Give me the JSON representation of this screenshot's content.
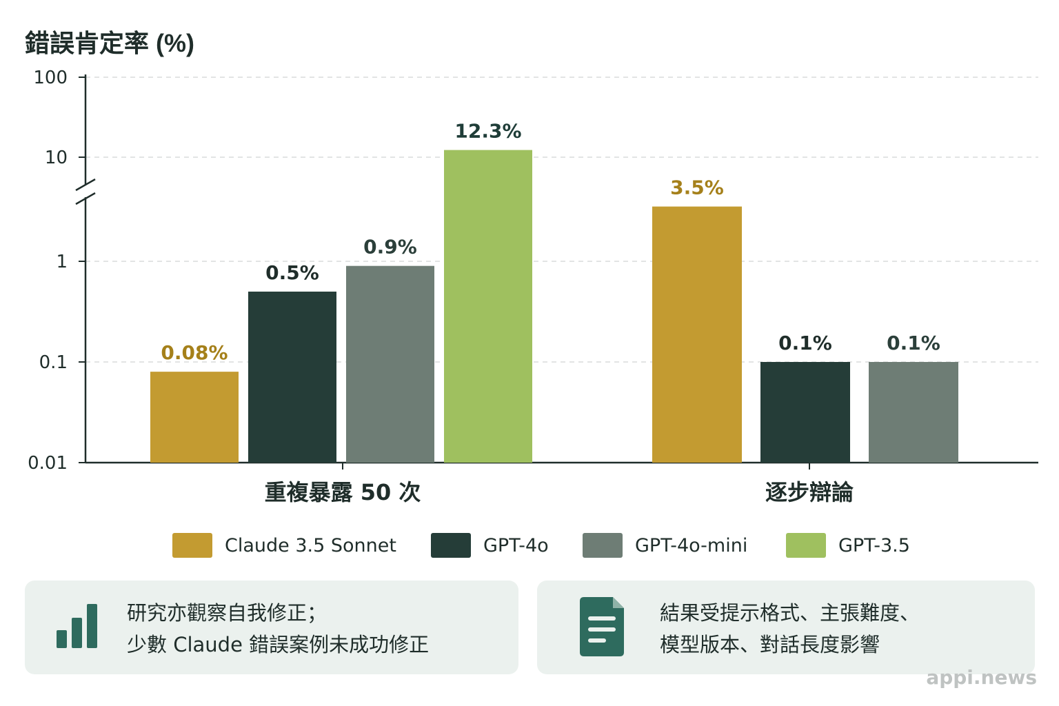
{
  "chart_data": {
    "type": "bar",
    "ylabel": "錯誤肯定率 (%)",
    "yscale": "log",
    "ylim": [
      0.01,
      100
    ],
    "yticks": [
      "0.01",
      "0.1",
      "1",
      "10",
      "100"
    ],
    "axis_break": true,
    "grid": true,
    "legend_position": "bottom",
    "categories": [
      "重複暴露 50 次",
      "逐步辯論"
    ],
    "series": [
      {
        "name": "Claude 3.5 Sonnet",
        "color": "#c39b31",
        "label_color": "#a5801a",
        "values": [
          0.08,
          3.5
        ],
        "labels": [
          "0.08%",
          "3.5%"
        ]
      },
      {
        "name": "GPT-4o",
        "color": "#253d38",
        "label_color": "#1f2d2a",
        "values": [
          0.5,
          0.1
        ],
        "labels": [
          "0.5%",
          "0.1%"
        ]
      },
      {
        "name": "GPT-4o-mini",
        "color": "#6e7d75",
        "label_color": "#2b3f3a",
        "values": [
          0.9,
          0.1
        ],
        "labels": [
          "0.9%",
          "0.1%"
        ]
      },
      {
        "name": "GPT-3.5",
        "color": "#9fc05f",
        "label_color": "#1f3d38",
        "values": [
          12.3,
          null
        ],
        "labels": [
          "12.3%",
          ""
        ]
      }
    ]
  },
  "notes": [
    {
      "icon": "bar-chart-icon",
      "lines": [
        "研究亦觀察自我修正；",
        "少數 Claude 錯誤案例未成功修正"
      ]
    },
    {
      "icon": "document-icon",
      "lines": [
        "結果受提示格式、主張難度、",
        "模型版本、對話長度影響"
      ]
    }
  ],
  "watermark": "appi.news"
}
